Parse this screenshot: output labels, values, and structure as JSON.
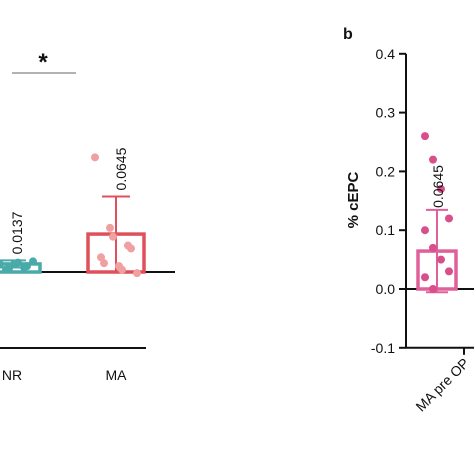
{
  "chart_data": [
    {
      "type": "bar",
      "categories": [
        "NR",
        "MA"
      ],
      "series": [
        {
          "values": [
            0.0137,
            0.0645
          ],
          "errors": [
            0.006,
            0.064
          ],
          "points": [
            [
              0.002,
              0.004,
              0.006,
              0.008,
              0.01,
              0.012,
              0.013,
              0.014,
              0.016,
              0.018
            ],
            [
              0.195,
              0.075,
              0.06,
              0.045,
              0.04,
              0.025,
              0.015,
              0.01,
              0.004,
              -0.002
            ]
          ]
        }
      ],
      "data_labels": [
        "0.0137",
        "0.0645"
      ],
      "significance": "*",
      "colors": {
        "NR": "#4aaaaa",
        "MA": "#e0505a",
        "MA_points": "#f0a0a0"
      }
    },
    {
      "type": "bar",
      "panel": "b",
      "categories": [
        "MA pre OP"
      ],
      "series": [
        {
          "values": [
            0.0645
          ],
          "errors": [
            0.07
          ],
          "points": [
            [
              0.26,
              0.22,
              0.17,
              0.12,
              0.1,
              0.07,
              0.05,
              0.03,
              0.02,
              0.0
            ]
          ]
        }
      ],
      "data_labels": [
        "0.0645"
      ],
      "ylabel": "% cEPC",
      "ylim": [
        -0.1,
        0.4
      ],
      "yticks": [
        "0.4",
        "0.3",
        "0.2",
        "0.1",
        "0.0",
        "-0.1"
      ],
      "colors": {
        "bar": "#e0609a",
        "points": "#d94f8c"
      }
    }
  ]
}
